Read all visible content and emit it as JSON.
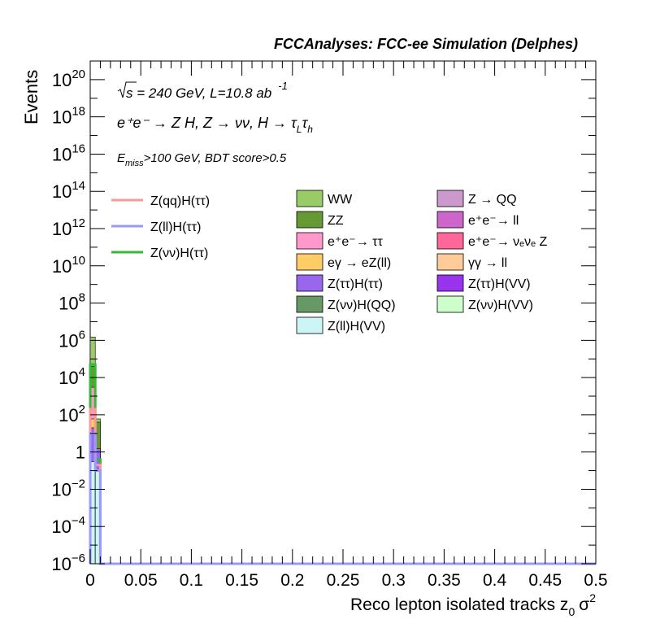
{
  "chart_data": {
    "type": "bar",
    "title": "FCCAnalyses: FCC-ee Simulation (Delphes)",
    "xlabel": "Reco lepton isolated tracks z",
    "xlabel_sub": "0",
    "xlabel_tail": "σ",
    "xlabel_sup": "2",
    "ylabel": "Events",
    "xlim": [
      0,
      0.5
    ],
    "ylim": [
      1e-06,
      1e+21
    ],
    "log_y": true,
    "grid": false,
    "x_ticks": [
      {
        "v": 0,
        "label": "0"
      },
      {
        "v": 0.05,
        "label": "0.05"
      },
      {
        "v": 0.1,
        "label": "0.1"
      },
      {
        "v": 0.15,
        "label": "0.15"
      },
      {
        "v": 0.2,
        "label": "0.2"
      },
      {
        "v": 0.25,
        "label": "0.25"
      },
      {
        "v": 0.3,
        "label": "0.3"
      },
      {
        "v": 0.35,
        "label": "0.35"
      },
      {
        "v": 0.4,
        "label": "0.4"
      },
      {
        "v": 0.45,
        "label": "0.45"
      },
      {
        "v": 0.5,
        "label": "0.5"
      }
    ],
    "y_ticks": [
      {
        "v": 1e-06,
        "base": "10",
        "exp": "−6"
      },
      {
        "v": 0.0001,
        "base": "10",
        "exp": "−4"
      },
      {
        "v": 0.01,
        "base": "10",
        "exp": "−2"
      },
      {
        "v": 1,
        "base": "1",
        "exp": ""
      },
      {
        "v": 100.0,
        "base": "10",
        "exp": "2"
      },
      {
        "v": 10000.0,
        "base": "10",
        "exp": "4"
      },
      {
        "v": 1000000.0,
        "base": "10",
        "exp": "6"
      },
      {
        "v": 100000000.0,
        "base": "10",
        "exp": "8"
      },
      {
        "v": 10000000000.0,
        "base": "10",
        "exp": "10"
      },
      {
        "v": 1000000000000.0,
        "base": "10",
        "exp": "12"
      },
      {
        "v": 100000000000000.0,
        "base": "10",
        "exp": "14"
      },
      {
        "v": 1e+16,
        "base": "10",
        "exp": "16"
      },
      {
        "v": 1e+18,
        "base": "10",
        "exp": "18"
      },
      {
        "v": 1e+20,
        "base": "10",
        "exp": "20"
      }
    ],
    "bin_width": 0.005,
    "bin_edges": [
      0,
      0.005,
      0.01
    ],
    "stack_bins": [
      {
        "x0": 0,
        "x1": 0.005,
        "segments": [
          {
            "name": "Z(ll)H(VV)",
            "top": 0.3,
            "color": "#ccf5f5"
          },
          {
            "name": "Z(ττ)H(ττ)",
            "top": 20,
            "color": "#9966ee"
          },
          {
            "name": "eγ → eZ(ll)",
            "top": 60,
            "color": "#ffcc66"
          },
          {
            "name": "e⁺e⁻→ ττ",
            "top": 3000,
            "color": "#ff99cc"
          },
          {
            "name": "ZZ",
            "top": 40000,
            "color": "#669933"
          },
          {
            "name": "WW",
            "top": 1500000,
            "color": "#99cc66"
          }
        ]
      },
      {
        "x0": 0.005,
        "x1": 0.01,
        "segments": [
          {
            "name": "Z(ll)H(VV)",
            "top": 0.1,
            "color": "#ccf5f5"
          },
          {
            "name": "Z(ττ)H(ττ)",
            "top": 1.5,
            "color": "#9966ee"
          },
          {
            "name": "ZZ",
            "top": 40,
            "color": "#669933"
          },
          {
            "name": "WW",
            "top": 60,
            "color": "#99cc66"
          }
        ]
      }
    ],
    "signals": [
      {
        "name": "Z(νν)H(ττ)",
        "color": "#33bb33",
        "x": [
          0,
          0.005,
          0.01,
          0.5
        ],
        "y": [
          50000,
          0.4,
          1e-06,
          1e-06
        ]
      },
      {
        "name": "Z(qq)H(ττ)",
        "color": "#ff9999",
        "x": [
          0,
          0.005,
          0.01,
          0.5
        ],
        "y": [
          200,
          0.2,
          1e-06,
          1e-06
        ]
      },
      {
        "name": "Z(ll)H(ττ)",
        "color": "#9999ff",
        "x": [
          0,
          0.005,
          0.01,
          0.5
        ],
        "y": [
          10,
          0.1,
          1e-06,
          1e-06
        ]
      }
    ],
    "annotations": {
      "line1_prefix": "s",
      "line1_rest": " = 240 GeV, L=10.8 ab",
      "line1_sup": "-1",
      "line2": "e⁺e⁻ → Z H, Z  → νν, H  → τ",
      "line2_sub1": "L",
      "line2_tau": "τ",
      "line2_sub2": "h",
      "line3_E": "E",
      "line3_sub": "miss",
      "line3_rest": ">100 GeV, BDT score>0.5"
    },
    "legend_signal": [
      {
        "name": "Z(qq)H(ττ)",
        "color": "#ff9999"
      },
      {
        "name": "Z(ll)H(ττ)",
        "color": "#9999ff"
      },
      {
        "name": "Z(νν)H(ττ)",
        "color": "#33bb33"
      }
    ],
    "legend_bkg": [
      {
        "name": "WW",
        "color": "#99cc66"
      },
      {
        "name": "Z → QQ",
        "color": "#cc99cc"
      },
      {
        "name": "ZZ",
        "color": "#669933"
      },
      {
        "name": "e⁺e⁻→ ll",
        "color": "#cc66cc"
      },
      {
        "name": "e⁺e⁻→ ττ",
        "color": "#ff99cc"
      },
      {
        "name": "e⁺e⁻→ νₑνₑ Z",
        "color": "#ff6699"
      },
      {
        "name": "eγ → eZ(ll)",
        "color": "#ffcc66"
      },
      {
        "name": "γγ → ll",
        "color": "#ffcc99"
      },
      {
        "name": "Z(ττ)H(ττ)",
        "color": "#9966ee"
      },
      {
        "name": "Z(ττ)H(VV)",
        "color": "#9933ee"
      },
      {
        "name": "Z(νν)H(QQ)",
        "color": "#669966"
      },
      {
        "name": "Z(νν)H(VV)",
        "color": "#ccffcc"
      },
      {
        "name": "Z(ll)H(VV)",
        "color": "#ccf5f5"
      }
    ]
  }
}
